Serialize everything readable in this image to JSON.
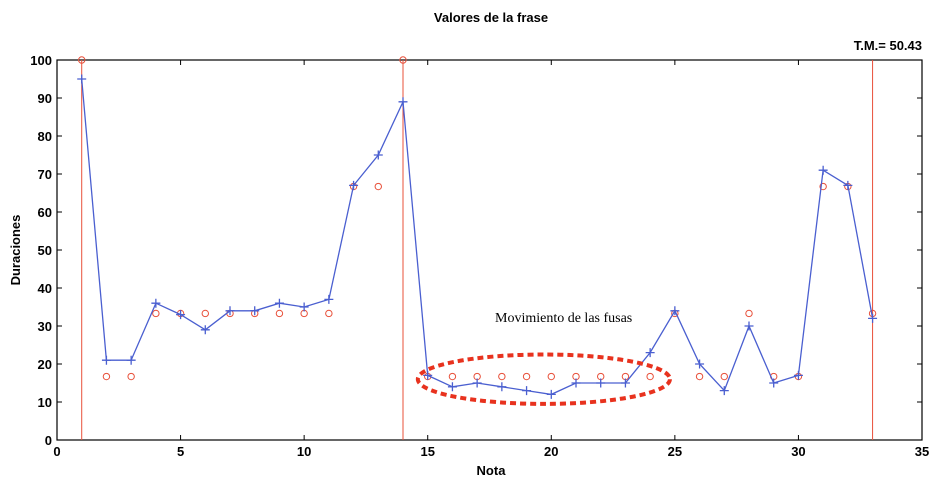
{
  "chart_data": {
    "type": "line",
    "title": "Valores de la frase",
    "subtitle": "T.M.= 50.43",
    "xlabel": "Nota",
    "ylabel": "Duraciones",
    "xlim": [
      0,
      35
    ],
    "ylim": [
      0,
      100
    ],
    "xticks": [
      "0",
      "5",
      "10",
      "15",
      "20",
      "25",
      "30",
      "35"
    ],
    "yticks": [
      "0",
      "10",
      "20",
      "30",
      "40",
      "50",
      "60",
      "70",
      "80",
      "90",
      "100"
    ],
    "grid": false,
    "series": [
      {
        "name": "",
        "style": "line-plus",
        "color": "#4a5fd0",
        "x": [
          1,
          2,
          3,
          4,
          5,
          6,
          7,
          8,
          9,
          10,
          11,
          12,
          13,
          14,
          15,
          16,
          17,
          18,
          19,
          20,
          21,
          22,
          23,
          24,
          25,
          26,
          27,
          28,
          29,
          30,
          31,
          32,
          33
        ],
        "y": [
          95,
          21,
          21,
          36,
          33,
          29,
          34,
          34,
          36,
          35,
          37,
          67,
          75,
          89,
          17,
          14,
          15,
          14,
          13,
          12,
          15,
          15,
          15,
          23,
          34,
          20,
          13,
          30,
          15,
          17,
          71,
          67,
          32
        ]
      },
      {
        "name": "",
        "style": "circles",
        "color": "#e8503a",
        "x": [
          1,
          2,
          3,
          4,
          5,
          6,
          7,
          8,
          9,
          10,
          11,
          12,
          13,
          14,
          15,
          16,
          17,
          18,
          19,
          20,
          21,
          22,
          23,
          24,
          25,
          26,
          27,
          28,
          29,
          30,
          31,
          32,
          33
        ],
        "y": [
          100,
          16.7,
          16.7,
          33.3,
          33.3,
          33.3,
          33.3,
          33.3,
          33.3,
          33.3,
          33.3,
          66.7,
          66.7,
          100,
          16.7,
          16.7,
          16.7,
          16.7,
          16.7,
          16.7,
          16.7,
          16.7,
          16.7,
          16.7,
          33.3,
          16.7,
          16.7,
          33.3,
          16.7,
          16.7,
          66.7,
          66.7,
          33.3
        ]
      }
    ],
    "vlines": {
      "x": [
        1,
        14,
        33
      ],
      "color": "#e8503a"
    },
    "annotations": [
      {
        "text": "Movimiento de las fusas",
        "x": 20.5,
        "y": 31
      }
    ],
    "highlight_ellipse": {
      "cx": 19.7,
      "cy": 16,
      "rx": 5.1,
      "ry": 6.5,
      "color": "#e8321e"
    }
  },
  "colors": {
    "axis": "#000000",
    "line": "#4a5fd0",
    "markers": "#e8503a",
    "ellipse": "#e8321e"
  }
}
